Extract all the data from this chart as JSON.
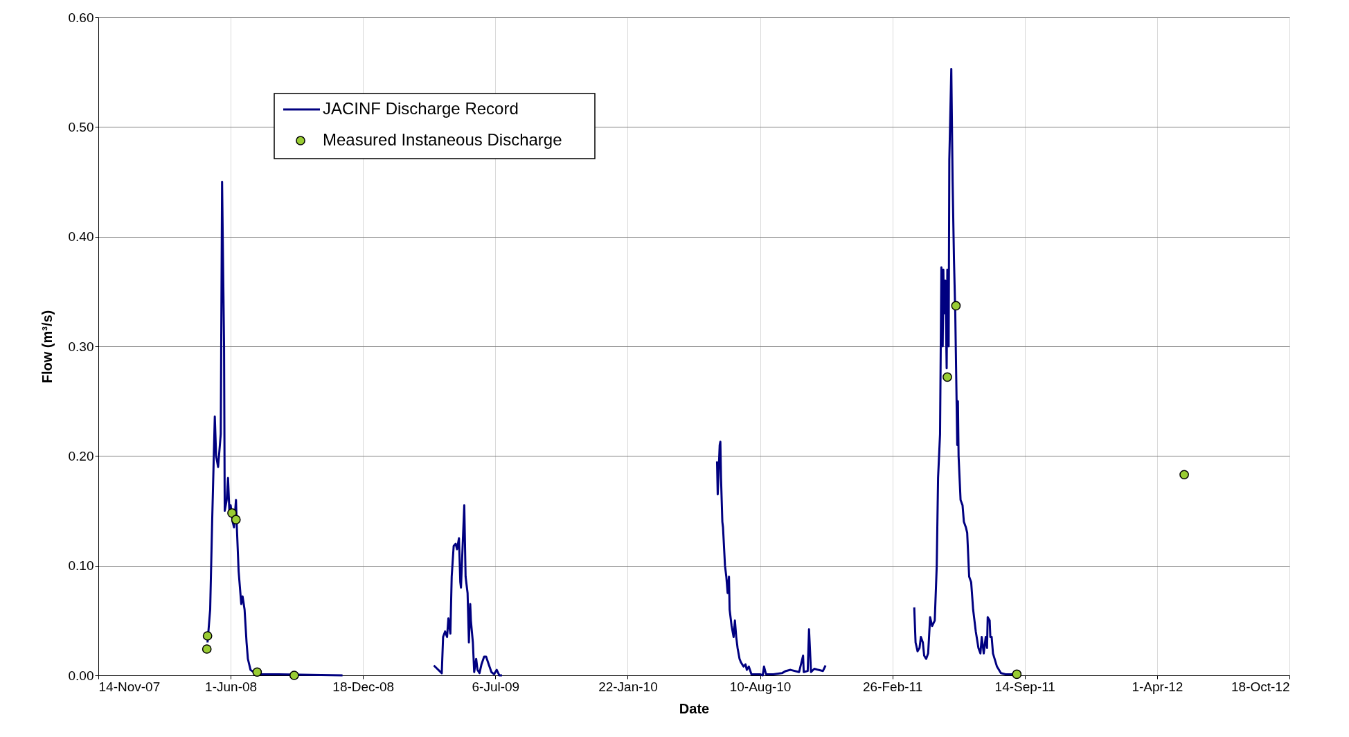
{
  "chart_data": {
    "type": "line",
    "xlabel": "Date",
    "ylabel": "Flow (m³/s)",
    "xlim": [
      "2007-11-14",
      "2012-10-18"
    ],
    "ylim": [
      0,
      0.6
    ],
    "xticks": [
      {
        "value": "2007-11-14",
        "label": "14-Nov-07"
      },
      {
        "value": "2008-06-01",
        "label": "1-Jun-08"
      },
      {
        "value": "2008-12-18",
        "label": "18-Dec-08"
      },
      {
        "value": "2009-07-06",
        "label": "6-Jul-09"
      },
      {
        "value": "2010-01-22",
        "label": "22-Jan-10"
      },
      {
        "value": "2010-08-10",
        "label": "10-Aug-10"
      },
      {
        "value": "2011-02-26",
        "label": "26-Feb-11"
      },
      {
        "value": "2011-09-14",
        "label": "14-Sep-11"
      },
      {
        "value": "2012-04-01",
        "label": "1-Apr-12"
      },
      {
        "value": "2012-10-18",
        "label": "18-Oct-12"
      }
    ],
    "yticks": [
      {
        "value": 0,
        "label": "0.00"
      },
      {
        "value": 0.1,
        "label": "0.10"
      },
      {
        "value": 0.2,
        "label": "0.20"
      },
      {
        "value": 0.3,
        "label": "0.30"
      },
      {
        "value": 0.4,
        "label": "0.40"
      },
      {
        "value": 0.5,
        "label": "0.50"
      },
      {
        "value": 0.6,
        "label": "0.60"
      }
    ],
    "grid": true,
    "legend": "top left",
    "series": [
      {
        "name": "JACINF Discharge Record",
        "color": "#000080",
        "line_style": "solid",
        "marker": "none",
        "x": [
          "2008-04-27",
          "2008-05-01",
          "2008-05-04",
          "2008-05-08",
          "2008-05-10",
          "2008-05-13",
          "2008-05-17",
          "2008-05-19",
          "2008-05-22",
          "2008-05-23",
          "2008-05-26",
          "2008-05-28",
          "2008-05-30",
          "2008-06-01",
          "2008-06-04",
          "2008-06-06",
          "2008-06-09",
          "2008-06-10",
          "2008-06-13",
          "2008-06-17",
          "2008-06-19",
          "2008-06-22",
          "2008-06-25",
          "2008-06-27",
          "2008-07-01",
          "2008-07-10",
          "2008-08-12",
          "2008-11-17",
          "2008-11-18",
          "2009-04-04",
          "2009-04-16",
          "2009-04-18",
          "2009-04-21",
          "2009-04-24",
          "2009-04-26",
          "2009-04-29",
          "2009-05-01",
          "2009-05-04",
          "2009-05-07",
          "2009-05-09",
          "2009-05-12",
          "2009-05-14",
          "2009-05-15",
          "2009-05-20",
          "2009-05-22",
          "2009-05-25",
          "2009-05-27",
          "2009-05-29",
          "2009-05-30",
          "2009-06-02",
          "2009-06-04",
          "2009-06-07",
          "2009-06-09",
          "2009-06-12",
          "2009-06-15",
          "2009-06-19",
          "2009-06-22",
          "2009-06-26",
          "2009-06-30",
          "2009-07-04",
          "2009-07-08",
          "2009-07-12",
          "2009-07-16",
          "2009-07-17",
          "2010-06-06",
          "2010-06-07",
          "2010-06-10",
          "2010-06-11",
          "2010-06-12",
          "2010-06-14",
          "2010-06-15",
          "2010-06-18",
          "2010-06-20",
          "2010-06-22",
          "2010-06-24",
          "2010-06-25",
          "2010-06-28",
          "2010-07-01",
          "2010-07-03",
          "2010-07-05",
          "2010-07-07",
          "2010-07-10",
          "2010-07-12",
          "2010-07-16",
          "2010-07-19",
          "2010-07-21",
          "2010-07-24",
          "2010-07-28",
          "2010-08-10",
          "2010-08-14",
          "2010-08-16",
          "2010-08-19",
          "2010-08-30",
          "2010-09-12",
          "2010-09-18",
          "2010-09-25",
          "2010-10-08",
          "2010-10-14",
          "2010-10-15",
          "2010-10-21",
          "2010-10-23",
          "2010-10-26",
          "2010-10-31",
          "2010-11-06",
          "2010-11-13",
          "2010-11-17",
          "2010-11-18",
          "2011-03-31",
          "2011-04-02",
          "2011-04-05",
          "2011-04-08",
          "2011-04-10",
          "2011-04-13",
          "2011-04-15",
          "2011-04-18",
          "2011-04-21",
          "2011-04-24",
          "2011-04-27",
          "2011-05-01",
          "2011-05-04",
          "2011-05-06",
          "2011-05-09",
          "2011-05-11",
          "2011-05-13",
          "2011-05-14",
          "2011-05-15",
          "2011-05-17",
          "2011-05-19",
          "2011-05-20",
          "2011-05-22",
          "2011-05-23",
          "2011-05-26",
          "2011-05-27",
          "2011-05-28",
          "2011-05-30",
          "2011-06-01",
          "2011-06-04",
          "2011-06-05",
          "2011-06-06",
          "2011-06-09",
          "2011-06-12",
          "2011-06-14",
          "2011-06-17",
          "2011-06-19",
          "2011-06-22",
          "2011-06-25",
          "2011-06-28",
          "2011-07-02",
          "2011-07-06",
          "2011-07-09",
          "2011-07-11",
          "2011-07-14",
          "2011-07-17",
          "2011-07-19",
          "2011-07-20",
          "2011-07-23",
          "2011-07-24",
          "2011-07-26",
          "2011-07-28",
          "2011-08-03",
          "2011-08-09",
          "2011-08-16",
          "2011-08-29"
        ],
        "values": [
          0.03,
          0.06,
          0.14,
          0.236,
          0.2,
          0.19,
          0.22,
          0.45,
          0.3,
          0.15,
          0.16,
          0.18,
          0.15,
          0.155,
          0.14,
          0.135,
          0.16,
          0.14,
          0.095,
          0.065,
          0.072,
          0.06,
          0.03,
          0.015,
          0.005,
          0.001,
          0.001,
          0.0,
          null,
          0.009,
          0.002,
          0.035,
          0.04,
          0.035,
          0.052,
          0.038,
          0.09,
          0.118,
          0.12,
          0.115,
          0.125,
          0.085,
          0.08,
          0.155,
          0.09,
          0.075,
          0.03,
          0.065,
          0.05,
          0.03,
          0.003,
          0.015,
          0.005,
          0.002,
          0.01,
          0.017,
          0.017,
          0.01,
          0.003,
          0.001,
          0.005,
          0.0,
          0.0,
          null,
          0.195,
          0.165,
          0.21,
          0.213,
          0.18,
          0.14,
          0.135,
          0.1,
          0.09,
          0.075,
          0.09,
          0.06,
          0.045,
          0.035,
          0.05,
          0.035,
          0.025,
          0.015,
          0.012,
          0.008,
          0.01,
          0.005,
          0.008,
          0.001,
          0.001,
          0.0,
          0.008,
          0.001,
          0.001,
          0.002,
          0.004,
          0.005,
          0.003,
          0.018,
          0.003,
          0.004,
          0.042,
          0.003,
          0.006,
          0.005,
          0.004,
          0.009,
          null,
          0.062,
          0.03,
          0.022,
          0.025,
          0.035,
          0.03,
          0.018,
          0.015,
          0.02,
          0.053,
          0.045,
          0.05,
          0.1,
          0.18,
          0.22,
          0.372,
          0.3,
          0.37,
          0.33,
          0.36,
          0.28,
          0.37,
          0.3,
          0.47,
          0.553,
          0.5,
          0.45,
          0.38,
          0.33,
          0.21,
          0.25,
          0.2,
          0.16,
          0.155,
          0.14,
          0.135,
          0.13,
          0.09,
          0.085,
          0.06,
          0.04,
          0.025,
          0.02,
          0.035,
          0.02,
          0.035,
          0.025,
          0.053,
          0.05,
          0.035,
          0.035,
          0.02,
          0.008,
          0.002,
          0.001,
          0.001
        ]
      },
      {
        "name": "Measured Instaneous Discharge",
        "type": "scatter",
        "color": "#99cc33",
        "marker": "circle",
        "x": [
          "2008-04-26",
          "2008-04-27",
          "2008-06-03",
          "2008-06-09",
          "2008-07-11",
          "2008-09-05",
          "2011-05-20",
          "2011-06-02",
          "2011-09-02",
          "2012-05-12"
        ],
        "values": [
          0.024,
          0.036,
          0.148,
          0.142,
          0.003,
          0.0,
          0.272,
          0.337,
          0.001,
          0.183
        ]
      }
    ]
  }
}
